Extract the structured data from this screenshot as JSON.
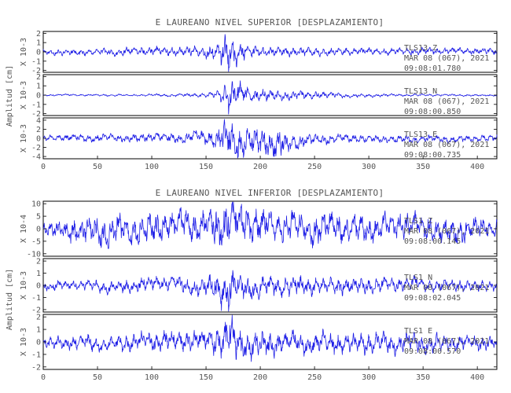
{
  "chart_data": [
    {
      "type": "line",
      "title": "E LAUREANO NIVEL SUPERIOR [DESPLAZAMIENTO]",
      "ylabel": "Amplitud [cm]",
      "xlim": [
        0,
        418
      ],
      "x_ticks": [
        0,
        50,
        100,
        150,
        200,
        250,
        300,
        350,
        400
      ],
      "show_x_tick_labels": true,
      "series": [
        {
          "name": "TLS13 Z",
          "scale_label": "X 10-3",
          "date": "MAR 08 (067), 2021",
          "start_time": "09:08:01.780",
          "ylim": [
            -2.2,
            2.2
          ],
          "y_ticks": [
            -2,
            -1,
            0,
            1,
            2
          ],
          "envelope": {
            "x": [
              0,
              60,
              120,
              150,
              160,
              166,
              170,
              174,
              180,
              190,
              205,
              230,
              270,
              320,
              380,
              418
            ],
            "amp": [
              0.25,
              0.35,
              0.4,
              0.5,
              0.9,
              1.6,
              2.0,
              1.6,
              1.0,
              0.6,
              0.45,
              0.4,
              0.35,
              0.3,
              0.3,
              0.3
            ]
          },
          "seed": 11
        },
        {
          "name": "TLS13 N",
          "scale_label": "X 10-3",
          "date": "MAR 08 (067), 2021",
          "start_time": "09:08:00.850",
          "ylim": [
            -2.2,
            2.2
          ],
          "y_ticks": [
            -2,
            -1,
            0,
            1,
            2
          ],
          "envelope": {
            "x": [
              0,
              100,
              150,
              162,
              168,
              172,
              178,
              190,
              220,
              250,
              280,
              320,
              418
            ],
            "amp": [
              0.08,
              0.1,
              0.2,
              0.5,
              1.3,
              1.7,
              1.2,
              0.65,
              0.45,
              0.35,
              0.2,
              0.12,
              0.08
            ]
          },
          "seed": 23
        },
        {
          "name": "TLS13 E",
          "scale_label": "X 10-3",
          "date": "MAR 08 (067), 2021",
          "start_time": "09:08:00.735",
          "ylim": [
            -4.5,
            4.5
          ],
          "y_ticks": [
            -4,
            -2,
            0,
            2,
            4
          ],
          "envelope": {
            "x": [
              0,
              100,
              150,
              165,
              172,
              180,
              200,
              215,
              230,
              250,
              300,
              418
            ],
            "amp": [
              0.6,
              0.8,
              1.2,
              2.6,
              4.0,
              3.2,
              2.6,
              2.8,
              1.8,
              1.0,
              0.7,
              0.6
            ]
          },
          "seed": 37
        }
      ]
    },
    {
      "type": "line",
      "title": "E LAUREANO NIVEL INFERIOR [DESPLAZAMIENTO]",
      "ylabel": "Amplitud [cm]",
      "xlim": [
        0,
        418
      ],
      "x_ticks": [
        0,
        50,
        100,
        150,
        200,
        250,
        300,
        350,
        400
      ],
      "show_x_tick_labels": true,
      "series": [
        {
          "name": "TLS1 Z",
          "scale_label": "X 10-4",
          "date": "MAR 08 (067), 2021",
          "start_time": "09:08:00.145",
          "ylim": [
            -11,
            11
          ],
          "y_ticks": [
            -10,
            -5,
            0,
            5,
            10
          ],
          "envelope": {
            "x": [
              0,
              50,
              100,
              150,
              170,
              180,
              220,
              300,
              360,
              418
            ],
            "amp": [
              2.5,
              5.0,
              5.5,
              5.5,
              9.5,
              7.0,
              5.5,
              5.0,
              4.5,
              3.5
            ]
          },
          "seed": 51
        },
        {
          "name": "TLS1 N",
          "scale_label": "X 10-3",
          "date": "MAR 08 (067), 2021",
          "start_time": "09:08:02.045",
          "ylim": [
            -2.2,
            2.2
          ],
          "y_ticks": [
            -2,
            -1,
            0,
            1,
            2
          ],
          "envelope": {
            "x": [
              0,
              80,
              150,
              165,
              170,
              175,
              190,
              250,
              330,
              418
            ],
            "amp": [
              0.3,
              0.45,
              0.6,
              1.4,
              1.9,
              1.2,
              0.8,
              0.6,
              0.5,
              0.35
            ]
          },
          "seed": 67
        },
        {
          "name": "TLS1 E",
          "scale_label": "X 10-3",
          "date": "MAR 08 (067), 2021",
          "start_time": "09:08:00.570",
          "ylim": [
            -2.2,
            2.2
          ],
          "y_ticks": [
            -2,
            -1,
            0,
            1,
            2
          ],
          "envelope": {
            "x": [
              0,
              80,
              150,
              168,
              172,
              180,
              220,
              300,
              380,
              418
            ],
            "amp": [
              0.4,
              0.6,
              0.7,
              1.4,
              1.9,
              1.1,
              0.8,
              0.7,
              0.6,
              0.4
            ]
          },
          "seed": 79
        }
      ]
    }
  ]
}
